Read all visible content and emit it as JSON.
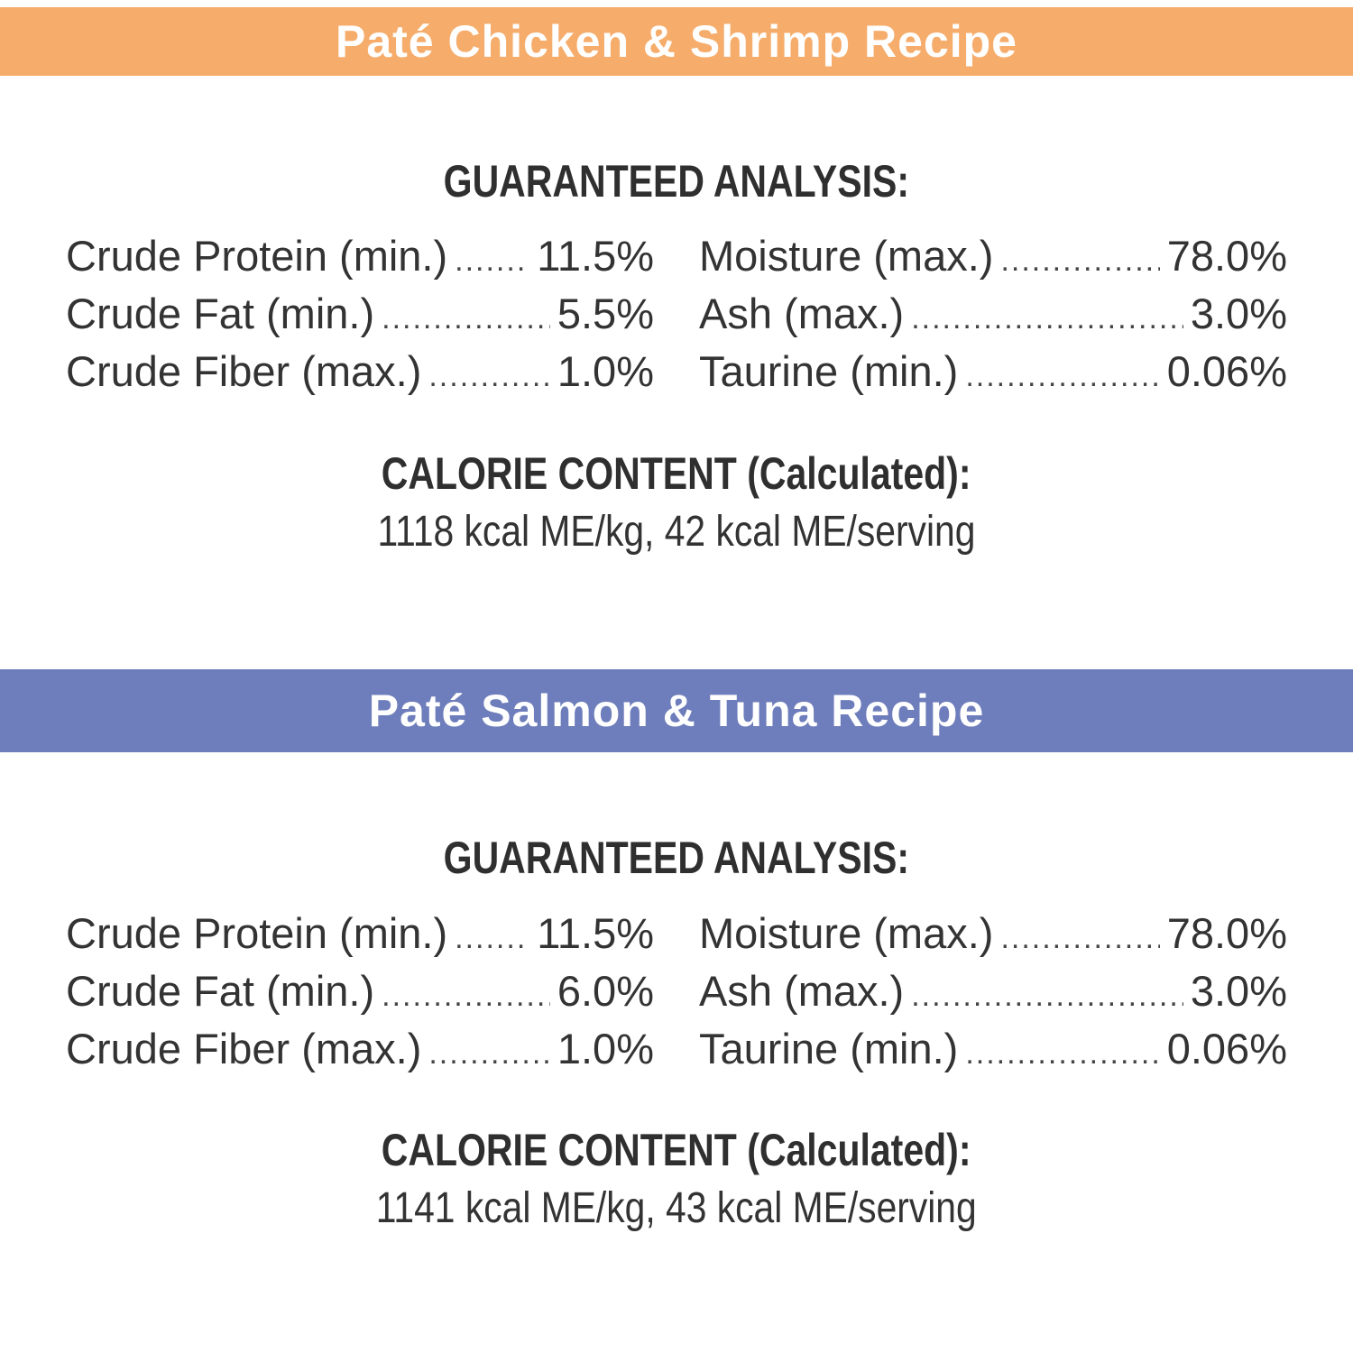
{
  "colors": {
    "chicken_bar": "#F6AD6C",
    "salmon_bar": "#6E7DBB",
    "text": "#333333"
  },
  "recipes": [
    {
      "title": "Paté Chicken & Shrimp Recipe",
      "analysis_heading": "GUARANTEED ANALYSIS:",
      "left": [
        {
          "label": "Crude Protein (min.)",
          "value": "11.5%"
        },
        {
          "label": "Crude Fat (min.)",
          "value": "5.5%"
        },
        {
          "label": "Crude Fiber (max.)",
          "value": "1.0%"
        }
      ],
      "right": [
        {
          "label": "Moisture (max.)",
          "value": "78.0%"
        },
        {
          "label": "Ash (max.)",
          "value": "3.0%"
        },
        {
          "label": "Taurine (min.)",
          "value": "0.06%"
        }
      ],
      "calorie_heading": "CALORIE CONTENT (Calculated):",
      "calorie_value": "1118 kcal ME/kg, 42 kcal ME/serving"
    },
    {
      "title": "Paté Salmon & Tuna Recipe",
      "analysis_heading": "GUARANTEED ANALYSIS:",
      "left": [
        {
          "label": "Crude Protein (min.)",
          "value": "11.5%"
        },
        {
          "label": "Crude Fat (min.)",
          "value": "6.0%"
        },
        {
          "label": "Crude Fiber (max.)",
          "value": "1.0%"
        }
      ],
      "right": [
        {
          "label": "Moisture (max.)",
          "value": "78.0%"
        },
        {
          "label": "Ash (max.)",
          "value": "3.0%"
        },
        {
          "label": "Taurine (min.)",
          "value": "0.06%"
        }
      ],
      "calorie_heading": "CALORIE CONTENT (Calculated):",
      "calorie_value": "1141 kcal ME/kg, 43 kcal ME/serving"
    }
  ]
}
